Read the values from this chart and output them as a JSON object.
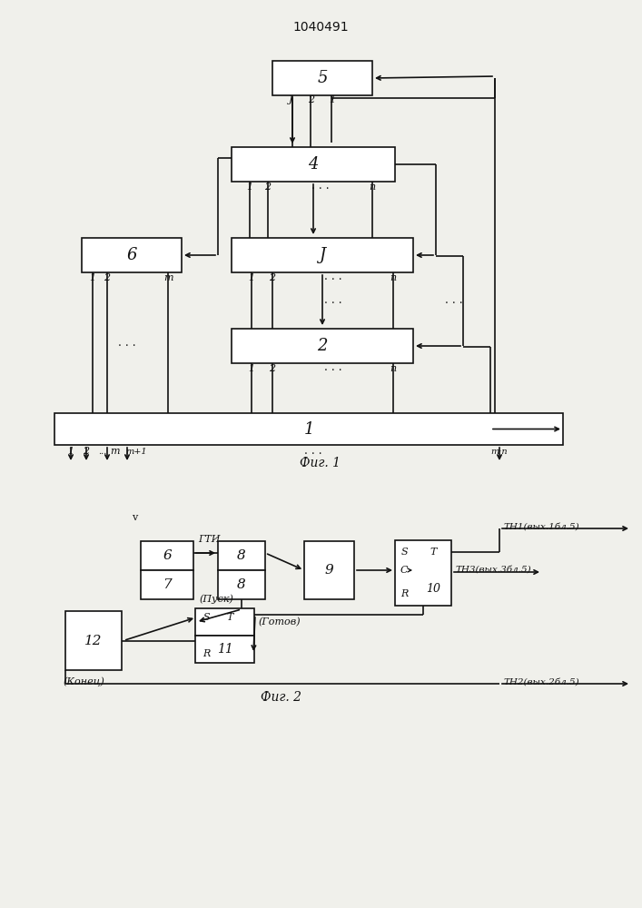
{
  "title": "1040491",
  "fig1_caption": "Фиг. 1",
  "fig2_caption": "Фиг. 2",
  "bg_color": "#f0f0eb",
  "line_color": "#111111",
  "box_color": "#ffffff",
  "font_color": "#111111"
}
